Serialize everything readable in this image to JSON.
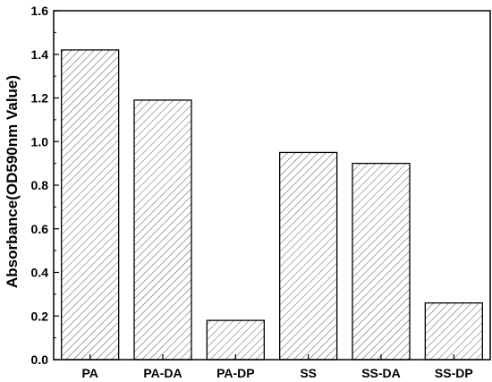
{
  "chart_data": {
    "type": "bar",
    "title": "",
    "xlabel": "",
    "ylabel": "Absorbance(OD590nm Value)",
    "categories": [
      "PA",
      "PA-DA",
      "PA-DP",
      "SS",
      "SS-DA",
      "SS-DP"
    ],
    "values": [
      1.42,
      1.19,
      0.18,
      0.95,
      0.9,
      0.26
    ],
    "ylim": [
      0.0,
      1.6
    ],
    "yticks": [
      "0.0",
      "0.2",
      "0.4",
      "0.6",
      "0.8",
      "1.0",
      "1.2",
      "1.4",
      "1.6"
    ],
    "grid": false,
    "legend": "none",
    "bar_fill": "hatched",
    "colors": {
      "bar_stroke": "#000000",
      "hatch": "#555555",
      "background": "#ffffff"
    }
  }
}
